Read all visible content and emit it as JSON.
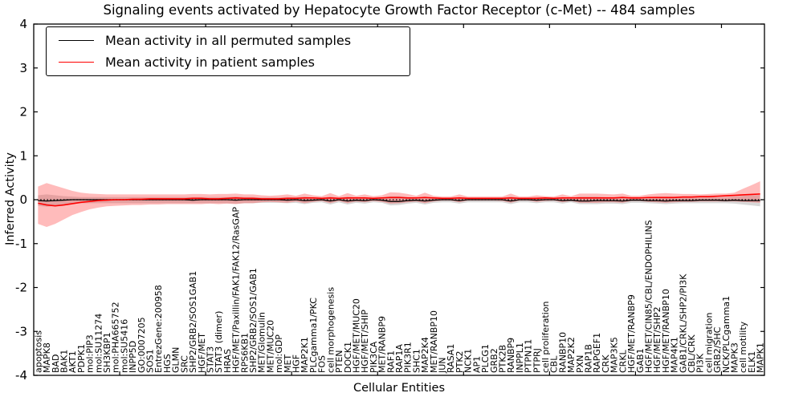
{
  "title": "Signaling events activated by Hepatocyte Growth Factor Receptor (c-Met) -- 484 samples",
  "legend": {
    "items": [
      {
        "label": "Mean activity in all permuted samples",
        "color": "#000000"
      },
      {
        "label": "Mean activity in patient samples",
        "color": "#ff0000"
      }
    ]
  },
  "axes": {
    "ylabel": "Inferred Activity",
    "xlabel": "Cellular Entities",
    "yticks": [
      4,
      3,
      2,
      1,
      0,
      -1,
      -2,
      -3,
      -4
    ],
    "xtick_units": [
      10,
      20,
      30,
      40,
      50,
      60,
      70,
      80
    ]
  },
  "colors": {
    "permuted_line": "#000000",
    "patient_line": "#ff0000",
    "permuted_band": "rgba(130,130,130,0.32)",
    "patient_band": "rgba(255,60,60,0.35)",
    "zero_line": "#000000"
  },
  "chart_data": {
    "type": "line",
    "title": "Signaling events activated by Hepatocyte Growth Factor Receptor (c-Met) -- 484 samples",
    "xlabel": "Cellular Entities",
    "ylabel": "Inferred Activity",
    "ylim": [
      -4,
      4
    ],
    "grid": false,
    "legend_position": "upper left",
    "zero_line": {
      "style": "dotted",
      "y": 0
    },
    "categories": [
      "apoptosis",
      "MAPK8",
      "BAD",
      "BAK1",
      "AKT1",
      "PDPK1",
      "mol:PIP3",
      "mol:SU11274",
      "SH3KBP1",
      "mol:PHA665752",
      "mol:SU5416",
      "INPP5D",
      "GO:0007205",
      "SOS1",
      "EntrezGene:200958",
      "HGS",
      "GLMN",
      "SRC",
      "SHP2/GRB2/SOS1GAB1",
      "HGF/MET",
      "STAT3",
      "STAT3 (dimer)",
      "HRAS",
      "HGF/MET/Paxillin/FAK1/FAK12/RasGAP",
      "RPS6KB1",
      "SHP2/GRB2/SOS1/GAB1",
      "MET/Glomulin",
      "MET/MUC20",
      "mol:GDP",
      "MET",
      "HGF",
      "MAP2K1",
      "PLCgamma1/PKC",
      "FOS",
      "cell morphogenesis",
      "PTEN",
      "DOCK1",
      "HGF/MET/MUC20",
      "HGF/MET/SHIP",
      "PIK3CA",
      "MET/RANBP9",
      "RAF1",
      "RAP1A",
      "PIK3R1",
      "SHC1",
      "MAP2K4",
      "MET/RANBP10",
      "JUN",
      "RASA1",
      "PTK2",
      "NCK1",
      "AP1",
      "PLCG1",
      "GRB2",
      "PTK2B",
      "RANBP9",
      "INPPL1",
      "PTPN11",
      "PTPRJ",
      "cell proliferation",
      "CBL",
      "RANBP10",
      "MAP2K2",
      "PXN",
      "RAP1B",
      "RAPGEF1",
      "CRK",
      "MAP3K5",
      "CRKL",
      "HGF/MET/RANBP9",
      "GAB1",
      "HGF/MET/CIN85/CBL/ENDOPHILINS",
      "HGF/MET/SHP2",
      "HGF/MET/RANBP10",
      "MAP4K1",
      "GAB1/CRKL/SHP2/PI3K",
      "CBL/CRK",
      "PI3K",
      "cell migration",
      "GRB2/SHC",
      "NCK/PLCgamma1",
      "MAPK3",
      "cell motility",
      "ELK1",
      "MAPK1"
    ],
    "series": [
      {
        "name": "Mean activity in all permuted samples",
        "color": "#000000",
        "band_color": "rgba(130,130,130,0.32)",
        "values": [
          -0.02,
          -0.03,
          -0.02,
          -0.01,
          0,
          0,
          0,
          0,
          0,
          0,
          0,
          0,
          0,
          0,
          0,
          0,
          0,
          0,
          -0.01,
          0,
          0,
          0,
          0,
          -0.01,
          0,
          0,
          0,
          0,
          0,
          -0.01,
          0,
          -0.02,
          -0.01,
          0,
          -0.03,
          0,
          -0.03,
          -0.01,
          -0.02,
          0,
          -0.01,
          -0.04,
          -0.04,
          -0.02,
          -0.01,
          -0.03,
          -0.01,
          0,
          0,
          -0.02,
          0,
          0,
          0,
          0,
          0,
          -0.03,
          0,
          0,
          -0.01,
          0,
          0,
          -0.02,
          -0.01,
          -0.03,
          -0.03,
          -0.02,
          -0.02,
          -0.02,
          -0.03,
          -0.01,
          -0.01,
          -0.02,
          -0.02,
          -0.03,
          -0.02,
          -0.02,
          -0.02,
          -0.01,
          -0.01,
          -0.01,
          -0.02,
          -0.01,
          -0.02,
          -0.02,
          -0.02
        ],
        "band_upper": [
          0.1,
          0.12,
          0.1,
          0.08,
          0.07,
          0.06,
          0.06,
          0.06,
          0.06,
          0.06,
          0.06,
          0.06,
          0.06,
          0.06,
          0.06,
          0.06,
          0.06,
          0.06,
          0.06,
          0.06,
          0.06,
          0.06,
          0.06,
          0.07,
          0.06,
          0.06,
          0.05,
          0.05,
          0.05,
          0.06,
          0.05,
          0.07,
          0.05,
          0.04,
          0.07,
          0.04,
          0.07,
          0.05,
          0.06,
          0.04,
          0.05,
          0.08,
          0.08,
          0.06,
          0.05,
          0.07,
          0.05,
          0.04,
          0.04,
          0.06,
          0.04,
          0.04,
          0.04,
          0.04,
          0.04,
          0.07,
          0.04,
          0.04,
          0.05,
          0.04,
          0.04,
          0.06,
          0.04,
          0.07,
          0.07,
          0.07,
          0.06,
          0.06,
          0.07,
          0.05,
          0.05,
          0.06,
          0.07,
          0.07,
          0.07,
          0.06,
          0.06,
          0.06,
          0.06,
          0.06,
          0.06,
          0.07,
          0.09,
          0.1,
          0.11
        ],
        "band_lower": [
          -0.14,
          -0.16,
          -0.14,
          -0.11,
          -0.09,
          -0.08,
          -0.08,
          -0.08,
          -0.08,
          -0.08,
          -0.08,
          -0.08,
          -0.08,
          -0.08,
          -0.08,
          -0.08,
          -0.08,
          -0.08,
          -0.08,
          -0.08,
          -0.08,
          -0.08,
          -0.08,
          -0.09,
          -0.08,
          -0.08,
          -0.07,
          -0.07,
          -0.07,
          -0.08,
          -0.07,
          -0.1,
          -0.07,
          -0.06,
          -0.11,
          -0.06,
          -0.11,
          -0.07,
          -0.09,
          -0.06,
          -0.07,
          -0.13,
          -0.12,
          -0.09,
          -0.07,
          -0.11,
          -0.07,
          -0.06,
          -0.06,
          -0.09,
          -0.06,
          -0.06,
          -0.06,
          -0.06,
          -0.06,
          -0.1,
          -0.06,
          -0.06,
          -0.08,
          -0.06,
          -0.06,
          -0.09,
          -0.06,
          -0.1,
          -0.1,
          -0.1,
          -0.09,
          -0.09,
          -0.1,
          -0.07,
          -0.07,
          -0.08,
          -0.09,
          -0.1,
          -0.09,
          -0.08,
          -0.08,
          -0.08,
          -0.08,
          -0.08,
          -0.08,
          -0.09,
          -0.11,
          -0.13,
          -0.15
        ]
      },
      {
        "name": "Mean activity in patient samples",
        "color": "#ff0000",
        "band_color": "rgba(255,60,60,0.35)",
        "values": [
          -0.08,
          -0.12,
          -0.14,
          -0.12,
          -0.09,
          -0.06,
          -0.04,
          -0.02,
          -0.01,
          0,
          0,
          0.01,
          0.01,
          0.02,
          0.02,
          0.02,
          0.02,
          0.02,
          0.03,
          0.03,
          0.02,
          0.02,
          0.03,
          0.04,
          0.03,
          0.03,
          0.02,
          0.02,
          0.02,
          0.03,
          0.03,
          0.04,
          0.04,
          0.03,
          0.04,
          0.03,
          0.04,
          0.04,
          0.04,
          0.03,
          0.04,
          0.05,
          0.05,
          0.04,
          0.04,
          0.05,
          0.04,
          0.03,
          0.03,
          0.04,
          0.03,
          0.03,
          0.03,
          0.03,
          0.03,
          0.04,
          0.03,
          0.03,
          0.03,
          0.04,
          0.03,
          0.04,
          0.04,
          0.04,
          0.04,
          0.04,
          0.04,
          0.04,
          0.05,
          0.04,
          0.04,
          0.05,
          0.05,
          0.05,
          0.05,
          0.06,
          0.06,
          0.07,
          0.07,
          0.08,
          0.09,
          0.1,
          0.11,
          0.12,
          0.13
        ],
        "band_upper": [
          0.3,
          0.38,
          0.32,
          0.26,
          0.2,
          0.16,
          0.14,
          0.13,
          0.12,
          0.12,
          0.12,
          0.12,
          0.12,
          0.12,
          0.12,
          0.12,
          0.12,
          0.12,
          0.13,
          0.13,
          0.12,
          0.13,
          0.13,
          0.14,
          0.12,
          0.12,
          0.1,
          0.09,
          0.1,
          0.12,
          0.09,
          0.14,
          0.1,
          0.08,
          0.15,
          0.08,
          0.15,
          0.09,
          0.12,
          0.08,
          0.1,
          0.17,
          0.16,
          0.13,
          0.09,
          0.16,
          0.09,
          0.07,
          0.07,
          0.12,
          0.07,
          0.07,
          0.07,
          0.07,
          0.07,
          0.14,
          0.07,
          0.07,
          0.1,
          0.08,
          0.07,
          0.12,
          0.08,
          0.14,
          0.14,
          0.14,
          0.13,
          0.12,
          0.14,
          0.09,
          0.09,
          0.12,
          0.14,
          0.15,
          0.14,
          0.13,
          0.13,
          0.12,
          0.13,
          0.14,
          0.14,
          0.16,
          0.25,
          0.33,
          0.42
        ],
        "band_lower": [
          -0.55,
          -0.62,
          -0.55,
          -0.45,
          -0.35,
          -0.28,
          -0.22,
          -0.18,
          -0.15,
          -0.14,
          -0.13,
          -0.12,
          -0.12,
          -0.11,
          -0.11,
          -0.1,
          -0.1,
          -0.1,
          -0.1,
          -0.1,
          -0.09,
          -0.1,
          -0.09,
          -0.1,
          -0.08,
          -0.08,
          -0.06,
          -0.05,
          -0.06,
          -0.07,
          -0.04,
          -0.08,
          -0.05,
          -0.03,
          -0.08,
          -0.03,
          -0.08,
          -0.04,
          -0.06,
          -0.03,
          -0.05,
          -0.09,
          -0.08,
          -0.06,
          -0.04,
          -0.08,
          -0.04,
          -0.02,
          -0.02,
          -0.06,
          -0.02,
          -0.02,
          -0.02,
          -0.02,
          -0.03,
          -0.07,
          -0.02,
          -0.02,
          -0.05,
          -0.03,
          -0.02,
          -0.06,
          -0.03,
          -0.07,
          -0.07,
          -0.07,
          -0.06,
          -0.06,
          -0.07,
          -0.03,
          -0.03,
          -0.05,
          -0.06,
          -0.07,
          -0.06,
          -0.05,
          -0.05,
          -0.04,
          -0.04,
          -0.04,
          -0.04,
          -0.04,
          -0.05,
          -0.06,
          -0.07
        ]
      }
    ]
  }
}
